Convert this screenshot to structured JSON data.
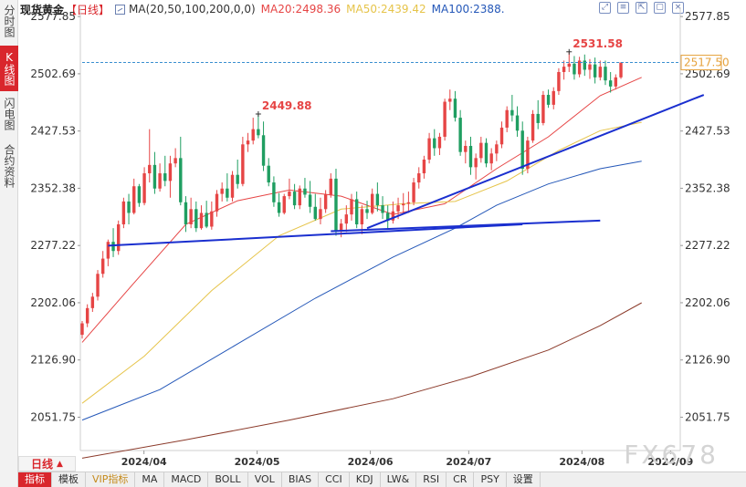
{
  "sidebar": {
    "tabs": [
      {
        "label": "分时图",
        "active": false
      },
      {
        "label": "K线图",
        "active": true
      },
      {
        "label": "闪电图",
        "active": false
      },
      {
        "label": "合约资料",
        "active": false
      }
    ]
  },
  "header": {
    "instrument": "现货黄金",
    "period": "【日线】",
    "ma_params": "MA(20,50,100,200,0,0)",
    "ma20": "MA20:2498.36",
    "ma50": "MA50:2439.42",
    "ma100": "MA100:2388.",
    "colors": {
      "ma20": "#e64545",
      "ma50": "#e6c44a",
      "ma100": "#2457b8"
    }
  },
  "toolbar_icons": [
    "expand-icon",
    "list-icon",
    "export-icon",
    "window-icon",
    "close-icon"
  ],
  "chart_data": {
    "type": "candlestick",
    "yaxis": {
      "ticks": [
        "2577.85",
        "2502.69",
        "2427.53",
        "2352.38",
        "2277.22",
        "2202.06",
        "2126.90",
        "2051.75"
      ],
      "ylim": [
        2008,
        2590
      ]
    },
    "xaxis": {
      "ticks": [
        "2024/04",
        "2024/05",
        "2024/06",
        "2024/07",
        "2024/08",
        "2024/09"
      ]
    },
    "current_price": "2517.50",
    "annotations": [
      {
        "label": "2531.58",
        "type": "high"
      },
      {
        "label": "2449.88",
        "type": "high"
      }
    ],
    "colors": {
      "up": "#e64545",
      "down": "#1f9e61",
      "ma20": "#e64545",
      "ma50": "#e6c44a",
      "ma100": "#2457b8",
      "ma200": "#8b3a2a",
      "trend": "#1a2fcf",
      "price_line": "#3a8fd0"
    },
    "candles": [
      [
        2160,
        2178,
        2155,
        2175
      ],
      [
        2175,
        2200,
        2170,
        2195
      ],
      [
        2195,
        2215,
        2190,
        2210
      ],
      [
        2210,
        2245,
        2205,
        2240
      ],
      [
        2240,
        2270,
        2235,
        2260
      ],
      [
        2260,
        2285,
        2250,
        2282
      ],
      [
        2282,
        2300,
        2262,
        2270
      ],
      [
        2270,
        2310,
        2265,
        2305
      ],
      [
        2305,
        2340,
        2300,
        2335
      ],
      [
        2335,
        2345,
        2305,
        2320
      ],
      [
        2320,
        2365,
        2318,
        2355
      ],
      [
        2355,
        2358,
        2328,
        2333
      ],
      [
        2333,
        2380,
        2330,
        2372
      ],
      [
        2372,
        2430,
        2360,
        2383
      ],
      [
        2383,
        2400,
        2345,
        2352
      ],
      [
        2352,
        2385,
        2348,
        2372
      ],
      [
        2372,
        2395,
        2355,
        2362
      ],
      [
        2362,
        2395,
        2340,
        2385
      ],
      [
        2385,
        2405,
        2380,
        2392
      ],
      [
        2392,
        2420,
        2330,
        2334
      ],
      [
        2334,
        2342,
        2295,
        2305
      ],
      [
        2305,
        2340,
        2300,
        2325
      ],
      [
        2325,
        2335,
        2295,
        2300
      ],
      [
        2300,
        2330,
        2298,
        2320
      ],
      [
        2320,
        2336,
        2300,
        2302
      ],
      [
        2302,
        2335,
        2298,
        2322
      ],
      [
        2322,
        2350,
        2315,
        2345
      ],
      [
        2345,
        2360,
        2335,
        2352
      ],
      [
        2352,
        2372,
        2335,
        2340
      ],
      [
        2340,
        2375,
        2335,
        2370
      ],
      [
        2370,
        2390,
        2352,
        2358
      ],
      [
        2358,
        2420,
        2355,
        2410
      ],
      [
        2410,
        2425,
        2400,
        2415
      ],
      [
        2415,
        2445,
        2410,
        2430
      ],
      [
        2430,
        2449.88,
        2418,
        2422
      ],
      [
        2422,
        2440,
        2375,
        2382
      ],
      [
        2382,
        2392,
        2355,
        2360
      ],
      [
        2360,
        2368,
        2328,
        2334
      ],
      [
        2334,
        2346,
        2315,
        2320
      ],
      [
        2320,
        2345,
        2318,
        2342
      ],
      [
        2342,
        2365,
        2338,
        2348
      ],
      [
        2348,
        2358,
        2325,
        2330
      ],
      [
        2330,
        2356,
        2325,
        2352
      ],
      [
        2352,
        2366,
        2340,
        2344
      ],
      [
        2344,
        2362,
        2320,
        2328
      ],
      [
        2328,
        2345,
        2310,
        2312
      ],
      [
        2312,
        2340,
        2305,
        2325
      ],
      [
        2325,
        2350,
        2320,
        2344
      ],
      [
        2344,
        2372,
        2340,
        2365
      ],
      [
        2365,
        2378,
        2290,
        2296
      ],
      [
        2296,
        2312,
        2288,
        2306
      ],
      [
        2306,
        2330,
        2295,
        2318
      ],
      [
        2318,
        2345,
        2310,
        2338
      ],
      [
        2338,
        2348,
        2300,
        2305
      ],
      [
        2305,
        2330,
        2292,
        2325
      ],
      [
        2325,
        2336,
        2312,
        2320
      ],
      [
        2320,
        2352,
        2318,
        2345
      ],
      [
        2345,
        2360,
        2322,
        2330
      ],
      [
        2330,
        2342,
        2312,
        2320
      ],
      [
        2320,
        2330,
        2298,
        2310
      ],
      [
        2310,
        2335,
        2306,
        2322
      ],
      [
        2322,
        2340,
        2312,
        2330
      ],
      [
        2330,
        2346,
        2318,
        2332
      ],
      [
        2332,
        2348,
        2320,
        2334
      ],
      [
        2334,
        2366,
        2330,
        2360
      ],
      [
        2360,
        2380,
        2352,
        2372
      ],
      [
        2372,
        2395,
        2365,
        2390
      ],
      [
        2390,
        2425,
        2385,
        2418
      ],
      [
        2418,
        2430,
        2395,
        2405
      ],
      [
        2405,
        2425,
        2396,
        2420
      ],
      [
        2420,
        2470,
        2415,
        2466
      ],
      [
        2466,
        2482,
        2455,
        2470
      ],
      [
        2470,
        2480,
        2440,
        2445
      ],
      [
        2445,
        2455,
        2395,
        2400
      ],
      [
        2400,
        2415,
        2385,
        2408
      ],
      [
        2408,
        2420,
        2370,
        2380
      ],
      [
        2380,
        2398,
        2364,
        2392
      ],
      [
        2392,
        2420,
        2386,
        2412
      ],
      [
        2412,
        2418,
        2380,
        2385
      ],
      [
        2385,
        2405,
        2376,
        2398
      ],
      [
        2398,
        2415,
        2388,
        2410
      ],
      [
        2410,
        2440,
        2405,
        2432
      ],
      [
        2432,
        2460,
        2426,
        2455
      ],
      [
        2455,
        2475,
        2440,
        2448
      ],
      [
        2448,
        2460,
        2420,
        2428
      ],
      [
        2428,
        2440,
        2370,
        2378
      ],
      [
        2378,
        2420,
        2372,
        2415
      ],
      [
        2415,
        2455,
        2412,
        2450
      ],
      [
        2450,
        2468,
        2430,
        2438
      ],
      [
        2438,
        2480,
        2435,
        2475
      ],
      [
        2475,
        2482,
        2458,
        2462
      ],
      [
        2462,
        2485,
        2456,
        2480
      ],
      [
        2480,
        2510,
        2475,
        2505
      ],
      [
        2505,
        2520,
        2495,
        2512
      ],
      [
        2512,
        2531.58,
        2505,
        2516
      ],
      [
        2516,
        2526,
        2495,
        2502
      ],
      [
        2502,
        2525,
        2498,
        2520
      ],
      [
        2520,
        2528,
        2500,
        2508
      ],
      [
        2508,
        2522,
        2496,
        2515
      ],
      [
        2515,
        2524,
        2490,
        2498
      ],
      [
        2498,
        2520,
        2494,
        2512
      ],
      [
        2512,
        2520,
        2488,
        2494
      ],
      [
        2494,
        2505,
        2478,
        2486
      ],
      [
        2486,
        2502,
        2482,
        2498
      ],
      [
        2498,
        2517.5,
        2496,
        2517.5
      ]
    ],
    "ma_lines": {
      "ma20": [
        [
          0,
          2150
        ],
        [
          10,
          2228
        ],
        [
          20,
          2305
        ],
        [
          30,
          2336
        ],
        [
          40,
          2350
        ],
        [
          50,
          2342
        ],
        [
          60,
          2318
        ],
        [
          70,
          2332
        ],
        [
          80,
          2378
        ],
        [
          90,
          2420
        ],
        [
          100,
          2474
        ],
        [
          108,
          2498
        ]
      ],
      "ma50": [
        [
          0,
          2070
        ],
        [
          12,
          2132
        ],
        [
          25,
          2218
        ],
        [
          38,
          2290
        ],
        [
          50,
          2325
        ],
        [
          62,
          2332
        ],
        [
          72,
          2335
        ],
        [
          82,
          2362
        ],
        [
          92,
          2402
        ],
        [
          100,
          2428
        ],
        [
          108,
          2439
        ]
      ],
      "ma100": [
        [
          0,
          2048
        ],
        [
          15,
          2088
        ],
        [
          30,
          2148
        ],
        [
          45,
          2208
        ],
        [
          60,
          2262
        ],
        [
          72,
          2300
        ],
        [
          80,
          2330
        ],
        [
          90,
          2358
        ],
        [
          100,
          2378
        ],
        [
          108,
          2388
        ]
      ],
      "ma200": [
        [
          0,
          1998
        ],
        [
          20,
          2022
        ],
        [
          40,
          2048
        ],
        [
          60,
          2076
        ],
        [
          75,
          2105
        ],
        [
          90,
          2140
        ],
        [
          100,
          2172
        ],
        [
          108,
          2202
        ]
      ]
    },
    "trendlines": [
      [
        [
          5,
          2277
        ],
        [
          85,
          2305
        ]
      ],
      [
        [
          55,
          2300
        ],
        [
          120,
          2475
        ]
      ],
      [
        [
          48,
          2296
        ],
        [
          100,
          2310
        ]
      ]
    ]
  },
  "period_selector": {
    "label": "日线",
    "arrow": "▲"
  },
  "bottom_tabs": [
    {
      "label": "指标",
      "active": true
    },
    {
      "label": "模板",
      "active": false
    },
    {
      "label": "VIP指标",
      "active": false,
      "vip": true
    },
    {
      "label": "MA",
      "active": false
    },
    {
      "label": "MACD",
      "active": false
    },
    {
      "label": "BOLL",
      "active": false
    },
    {
      "label": "VOL",
      "active": false
    },
    {
      "label": "BIAS",
      "active": false
    },
    {
      "label": "CCI",
      "active": false
    },
    {
      "label": "KDJ",
      "active": false
    },
    {
      "label": "LW&",
      "active": false
    },
    {
      "label": "RSI",
      "active": false
    },
    {
      "label": "CR",
      "active": false
    },
    {
      "label": "PSY",
      "active": false
    },
    {
      "label": "设置",
      "active": false
    }
  ],
  "watermark": "FX678"
}
